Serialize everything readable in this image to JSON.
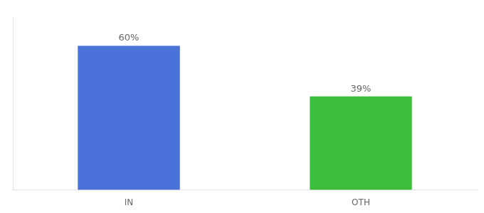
{
  "chart_data": {
    "type": "bar",
    "categories": [
      "IN",
      "OTH"
    ],
    "values": [
      60,
      39
    ],
    "value_labels": [
      "60%",
      "39%"
    ],
    "colors": [
      "#4a72d9",
      "#3dbe3d"
    ],
    "ylim": [
      0,
      72
    ],
    "data_labels": true,
    "tick_labels": "x",
    "grid": false
  }
}
